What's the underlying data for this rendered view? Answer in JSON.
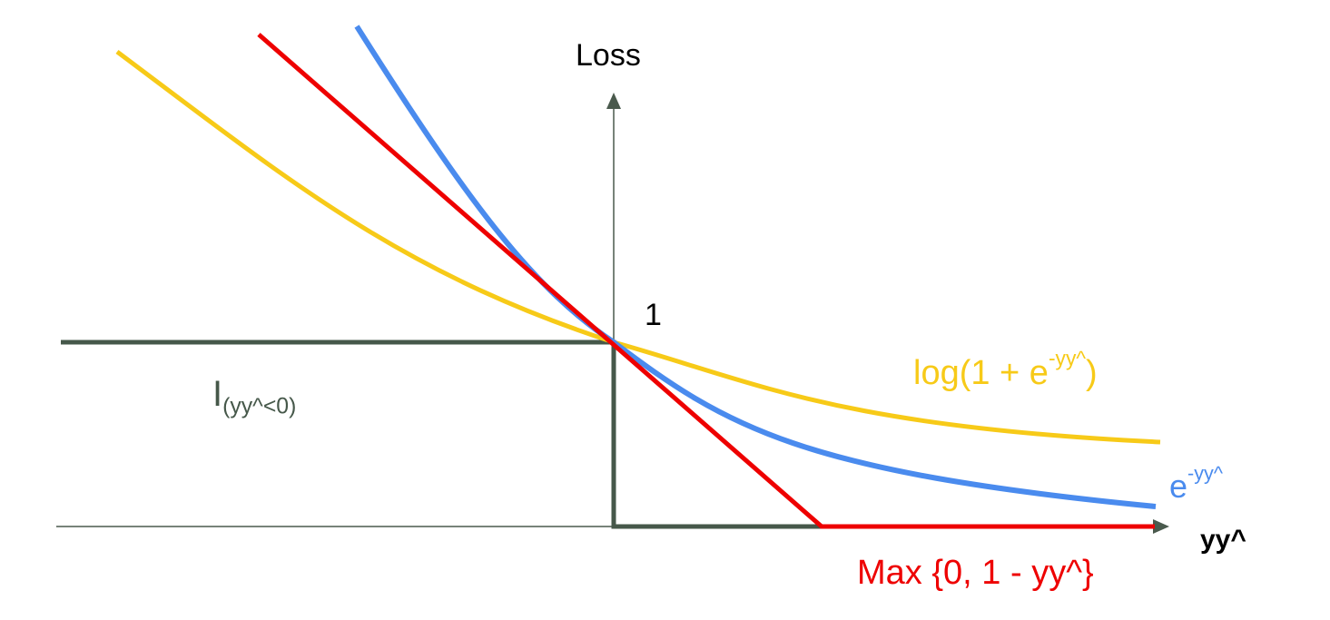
{
  "diagram": {
    "axis_y_label": "Loss",
    "axis_x_label": "yy^",
    "tick_one": "1",
    "colors": {
      "axis": "#4a5a4d",
      "zero_one": "#46584a",
      "hinge": "#ee0000",
      "exponential": "#4a8bee",
      "logistic": "#f7ca18",
      "text": "#000000"
    },
    "curves": {
      "logistic": {
        "base": "log(1 + e",
        "sup": "-yy^",
        "tail": ")"
      },
      "exponential": {
        "base": "e",
        "sup": "-yy^"
      },
      "hinge": {
        "label": "Max {0, 1 - yy^}"
      },
      "zero_one": {
        "base": "I",
        "sub": "(yy^<0)"
      }
    }
  }
}
